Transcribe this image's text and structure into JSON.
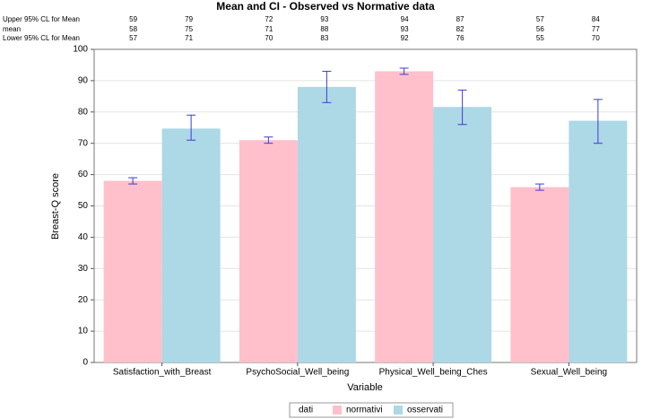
{
  "chart_data": {
    "type": "bar",
    "title": "Mean and CI - Observed vs Normative data",
    "y_label": "Breast-Q score",
    "x_label": "Variable",
    "categories": [
      "Satisfaction_with_Breast",
      "PsychoSocial_Well_being",
      "Physical_Well_being_Ches",
      "Sexual_Well_being"
    ],
    "table_rows": [
      "Upper 95% CL for Mean",
      "mean",
      "Lower 95% CL for Mean"
    ],
    "legend_title": "dati",
    "series": [
      {
        "name": "normativi",
        "color": "#ffc0cb",
        "values": [
          58,
          71,
          93,
          56
        ],
        "value_labels": [
          "58",
          "71",
          "93",
          "56"
        ],
        "upper": [
          59,
          72,
          94,
          57
        ],
        "lower": [
          57,
          70,
          92,
          55
        ]
      },
      {
        "name": "osservati",
        "color": "#add8e6",
        "values": [
          74.7,
          88,
          81.6,
          77.2
        ],
        "value_labels": [
          "75",
          "88",
          "82",
          "77"
        ],
        "upper": [
          79,
          93,
          87,
          84
        ],
        "lower": [
          71,
          83,
          76,
          70
        ]
      }
    ],
    "error_color": "#3b3bdc",
    "ylim": [
      0,
      100
    ],
    "yticks": [
      0,
      10,
      20,
      30,
      40,
      50,
      60,
      70,
      80,
      90,
      100
    ],
    "grid": true
  }
}
